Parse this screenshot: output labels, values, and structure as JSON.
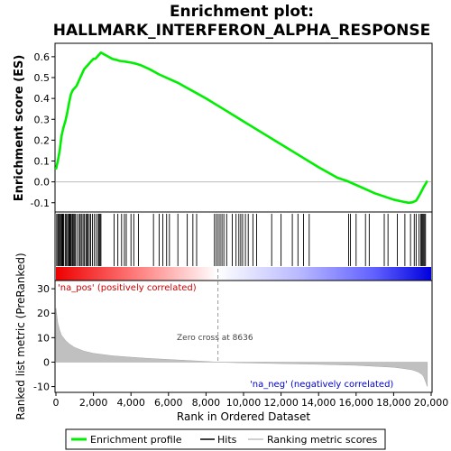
{
  "chart_data": {
    "type": "line",
    "title_line1": "Enrichment plot:",
    "title_line2": "HALLMARK_INTERFERON_ALPHA_RESPONSE",
    "es_panel": {
      "ylabel": "Enrichment score (ES)",
      "ylim": [
        -0.14,
        0.66
      ],
      "yticks": [
        -0.1,
        0.0,
        0.1,
        0.2,
        0.3,
        0.4,
        0.5,
        0.6
      ],
      "ytick_labels": [
        "-0.1",
        "0.0",
        "0.1",
        "0.2",
        "0.3",
        "0.4",
        "0.5",
        "0.6"
      ],
      "line_color": "#00ee00",
      "x": [
        0,
        100,
        200,
        300,
        400,
        500,
        600,
        700,
        800,
        900,
        1000,
        1100,
        1200,
        1300,
        1400,
        1500,
        1600,
        1700,
        1800,
        1900,
        2000,
        2100,
        2200,
        2300,
        2400,
        2600,
        2800,
        3000,
        3200,
        3400,
        3600,
        3800,
        4000,
        4200,
        4500,
        5000,
        5500,
        6000,
        6500,
        7000,
        7500,
        8000,
        8636,
        9000,
        10000,
        11000,
        12000,
        13000,
        14000,
        15000,
        15500,
        16000,
        16500,
        17000,
        17500,
        18000,
        18500,
        18800,
        19000,
        19200,
        19400,
        19600,
        19800
      ],
      "y": [
        0.06,
        0.1,
        0.15,
        0.22,
        0.26,
        0.29,
        0.33,
        0.38,
        0.42,
        0.44,
        0.45,
        0.46,
        0.48,
        0.5,
        0.52,
        0.54,
        0.55,
        0.56,
        0.57,
        0.58,
        0.59,
        0.59,
        0.6,
        0.61,
        0.62,
        0.61,
        0.6,
        0.59,
        0.585,
        0.58,
        0.578,
        0.575,
        0.572,
        0.568,
        0.56,
        0.54,
        0.515,
        0.495,
        0.475,
        0.45,
        0.425,
        0.4,
        0.365,
        0.345,
        0.29,
        0.235,
        0.18,
        0.125,
        0.07,
        0.02,
        0.005,
        -0.015,
        -0.035,
        -0.055,
        -0.07,
        -0.085,
        -0.095,
        -0.1,
        -0.098,
        -0.09,
        -0.06,
        -0.025,
        0.005
      ]
    },
    "hits": [
      40,
      100,
      150,
      200,
      250,
      300,
      340,
      380,
      420,
      500,
      560,
      620,
      680,
      720,
      760,
      800,
      860,
      900,
      950,
      1000,
      1050,
      1150,
      1250,
      1300,
      1380,
      1450,
      1520,
      1600,
      1650,
      1700,
      1780,
      1850,
      1950,
      2050,
      2150,
      2250,
      2300,
      2350,
      2400,
      3100,
      3300,
      3500,
      3650,
      3750,
      4000,
      4150,
      4400,
      5200,
      5500,
      5700,
      5900,
      6050,
      6500,
      7000,
      7300,
      7500,
      8450,
      8550,
      8650,
      8750,
      8850,
      8950,
      9100,
      9400,
      9600,
      9750,
      9850,
      9950,
      10100,
      10250,
      10500,
      10700,
      11500,
      12000,
      12600,
      12900,
      13200,
      13500,
      15600,
      15700,
      16000,
      16500,
      16700,
      17500,
      17700,
      18200,
      18600,
      18900,
      19100,
      19200,
      19350,
      19450,
      19500,
      19550,
      19600,
      19650,
      19700
    ],
    "ranking_panel": {
      "ylabel": "Ranked list metric (PreRanked)",
      "ylim": [
        -12,
        33
      ],
      "yticks": [
        -10,
        0,
        10,
        20,
        30
      ],
      "ytick_labels": [
        "-10",
        "0",
        "10",
        "20",
        "30"
      ],
      "x": [
        0,
        100,
        200,
        300,
        500,
        700,
        1000,
        1500,
        2000,
        3000,
        4000,
        5000,
        6000,
        7000,
        8000,
        8636,
        10000,
        12000,
        14000,
        16000,
        17000,
        18000,
        18500,
        19000,
        19300,
        19500,
        19600,
        19700,
        19800
      ],
      "y": [
        22,
        16,
        13,
        11,
        9,
        7.5,
        6,
        4.5,
        3.6,
        2.6,
        2,
        1.5,
        1.1,
        0.7,
        0.3,
        0,
        -0.3,
        -0.6,
        -0.9,
        -1.3,
        -1.7,
        -2.1,
        -2.6,
        -3.2,
        -4,
        -5,
        -6,
        -8,
        -10
      ],
      "fill_color": "#c0c0c0"
    },
    "pos_label": "'na_pos' (positively correlated)",
    "neg_label": "'na_neg' (negatively correlated)",
    "zero_cross_label": "Zero cross at 8636",
    "zero_cross": 8636,
    "xlabel": "Rank in Ordered Dataset",
    "xlim": [
      0,
      20000
    ],
    "xticks": [
      0,
      2000,
      4000,
      6000,
      8000,
      10000,
      12000,
      14000,
      16000,
      18000,
      20000
    ],
    "xtick_labels": [
      "0",
      "2,000",
      "4,000",
      "6,000",
      "8,000",
      "10,000",
      "12,000",
      "14,000",
      "16,000",
      "18,000",
      "20,000"
    ],
    "legend": {
      "placement": "bottom",
      "entries": [
        "Enrichment profile",
        "Hits",
        "Ranking metric scores"
      ]
    },
    "colors": {
      "pos_label": "#cc0000",
      "neg_label": "#0000cc",
      "bar_red": "#ff0000",
      "bar_blue": "#0000ff",
      "bar_white": "#ffffff"
    },
    "n_genes": 19800
  }
}
